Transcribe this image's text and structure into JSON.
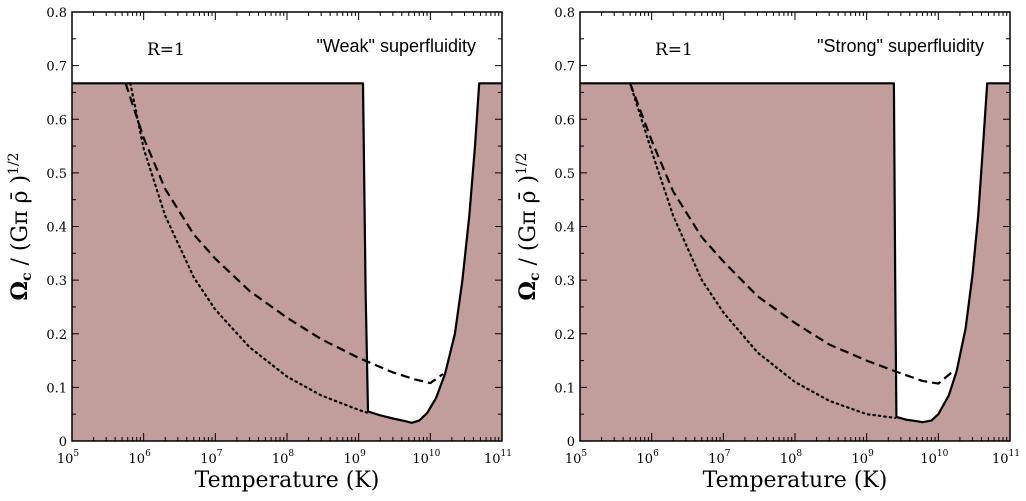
{
  "colors": {
    "shade": "#c19e9c",
    "line": "#000000",
    "frame": "#000000"
  },
  "chart_data": [
    {
      "type": "area",
      "annotations": {
        "radius": "R=1",
        "title": "\"Weak\" superfluidity"
      },
      "xlabel": "Temperature (K)",
      "ylabel": {
        "main": "Ω",
        "sub": "c",
        "rest": " / (Gπ ρ̄ )",
        "sup": "1/2"
      },
      "x_scale": "log",
      "xlim": [
        100000,
        100000000000
      ],
      "ylim": [
        0,
        0.8
      ],
      "x_ticks": [
        {
          "base": "10",
          "exp": "5",
          "value": 100000
        },
        {
          "base": "10",
          "exp": "6",
          "value": 1000000
        },
        {
          "base": "10",
          "exp": "7",
          "value": 10000000
        },
        {
          "base": "10",
          "exp": "8",
          "value": 100000000
        },
        {
          "base": "10",
          "exp": "9",
          "value": 1000000000
        },
        {
          "base": "10",
          "exp": "10",
          "value": 10000000000
        },
        {
          "base": "10",
          "exp": "11",
          "value": 100000000000
        }
      ],
      "y_ticks": [
        "0",
        "0.1",
        "0.2",
        "0.3",
        "0.4",
        "0.5",
        "0.6",
        "0.7",
        "0.8"
      ],
      "series": [
        {
          "style": "solid-fill",
          "points": [
            [
              100000,
              0.667
            ],
            [
              1150000000,
              0.667
            ],
            [
              1250000000,
              0.28
            ],
            [
              1350000000,
              0.055
            ],
            [
              2000000000,
              0.048
            ],
            [
              3000000000,
              0.042
            ],
            [
              4500000000,
              0.037
            ],
            [
              5500000000,
              0.034
            ],
            [
              7000000000,
              0.038
            ],
            [
              9000000000,
              0.052
            ],
            [
              12000000000,
              0.08
            ],
            [
              16000000000,
              0.125
            ],
            [
              22000000000,
              0.2
            ],
            [
              28000000000,
              0.3
            ],
            [
              35000000000,
              0.42
            ],
            [
              42000000000,
              0.55
            ],
            [
              48000000000,
              0.667
            ],
            [
              100000000000,
              0.667
            ]
          ]
        },
        {
          "style": "dashed",
          "points": [
            [
              560000,
              0.667
            ],
            [
              1000000,
              0.565
            ],
            [
              2000000,
              0.47
            ],
            [
              5000000,
              0.385
            ],
            [
              10000000,
              0.34
            ],
            [
              30000000,
              0.28
            ],
            [
              100000000,
              0.23
            ],
            [
              300000000,
              0.19
            ],
            [
              1000000000,
              0.155
            ],
            [
              3000000000,
              0.128
            ],
            [
              6000000000,
              0.115
            ],
            [
              10000000000,
              0.108
            ],
            [
              15000000000,
              0.125
            ]
          ]
        },
        {
          "style": "dotted",
          "points": [
            [
              650000,
              0.667
            ],
            [
              1000000,
              0.545
            ],
            [
              2000000,
              0.42
            ],
            [
              5000000,
              0.305
            ],
            [
              10000000,
              0.245
            ],
            [
              30000000,
              0.175
            ],
            [
              100000000,
              0.12
            ],
            [
              300000000,
              0.085
            ],
            [
              1000000000,
              0.058
            ],
            [
              1300000000,
              0.053
            ]
          ]
        }
      ]
    },
    {
      "type": "area",
      "annotations": {
        "radius": "R=1",
        "title": "\"Strong\" superfluidity"
      },
      "xlabel": "Temperature (K)",
      "ylabel": {
        "main": "Ω",
        "sub": "c",
        "rest": " / (Gπ ρ̄ )",
        "sup": "1/2"
      },
      "x_scale": "log",
      "xlim": [
        100000,
        100000000000
      ],
      "ylim": [
        0,
        0.8
      ],
      "x_ticks": [
        {
          "base": "10",
          "exp": "5",
          "value": 100000
        },
        {
          "base": "10",
          "exp": "6",
          "value": 1000000
        },
        {
          "base": "10",
          "exp": "7",
          "value": 10000000
        },
        {
          "base": "10",
          "exp": "8",
          "value": 100000000
        },
        {
          "base": "10",
          "exp": "9",
          "value": 1000000000
        },
        {
          "base": "10",
          "exp": "10",
          "value": 10000000000
        },
        {
          "base": "10",
          "exp": "11",
          "value": 100000000000
        }
      ],
      "y_ticks": [
        "0",
        "0.1",
        "0.2",
        "0.3",
        "0.4",
        "0.5",
        "0.6",
        "0.7",
        "0.8"
      ],
      "series": [
        {
          "style": "solid-fill",
          "points": [
            [
              100000,
              0.667
            ],
            [
              2400000000,
              0.667
            ],
            [
              2500000000,
              0.3
            ],
            [
              2600000000,
              0.045
            ],
            [
              3500000000,
              0.04
            ],
            [
              5000000000,
              0.037
            ],
            [
              6000000000,
              0.035
            ],
            [
              8000000000,
              0.038
            ],
            [
              10000000000,
              0.05
            ],
            [
              14000000000,
              0.085
            ],
            [
              18000000000,
              0.13
            ],
            [
              24000000000,
              0.21
            ],
            [
              30000000000,
              0.31
            ],
            [
              36000000000,
              0.42
            ],
            [
              42000000000,
              0.55
            ],
            [
              48000000000,
              0.667
            ],
            [
              100000000000,
              0.667
            ]
          ]
        },
        {
          "style": "dashed",
          "points": [
            [
              500000,
              0.667
            ],
            [
              1000000,
              0.56
            ],
            [
              2000000,
              0.465
            ],
            [
              5000000,
              0.38
            ],
            [
              10000000,
              0.335
            ],
            [
              30000000,
              0.27
            ],
            [
              100000000,
              0.22
            ],
            [
              300000000,
              0.18
            ],
            [
              1000000000,
              0.15
            ],
            [
              3000000000,
              0.126
            ],
            [
              6000000000,
              0.112
            ],
            [
              10000000000,
              0.107
            ],
            [
              16000000000,
              0.13
            ]
          ]
        },
        {
          "style": "dotted",
          "points": [
            [
              500000,
              0.667
            ],
            [
              1000000,
              0.54
            ],
            [
              2000000,
              0.42
            ],
            [
              5000000,
              0.3
            ],
            [
              10000000,
              0.24
            ],
            [
              30000000,
              0.165
            ],
            [
              100000000,
              0.11
            ],
            [
              300000000,
              0.075
            ],
            [
              1000000000,
              0.05
            ],
            [
              2500000000,
              0.043
            ]
          ]
        }
      ]
    }
  ]
}
